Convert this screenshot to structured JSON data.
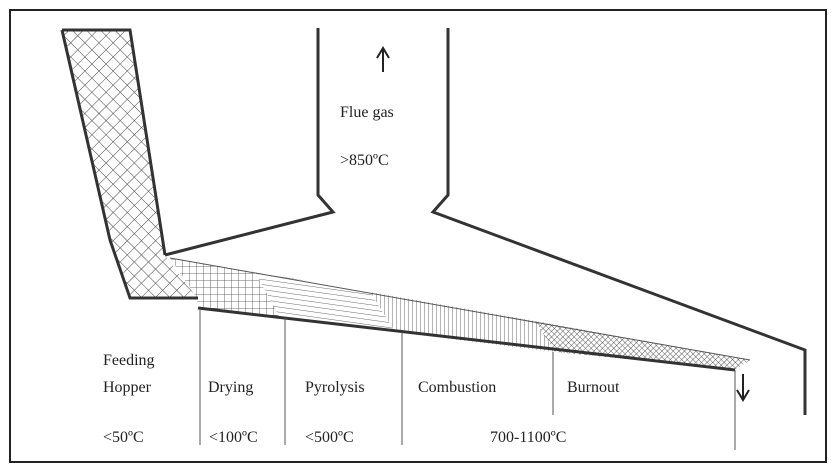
{
  "flue": {
    "label": "Flue gas",
    "temperature": ">850ºC"
  },
  "zones": [
    {
      "name_lines": [
        "Feeding",
        "Hopper"
      ]
    },
    {
      "name_lines": [
        "Drying"
      ]
    },
    {
      "name_lines": [
        "Pyrolysis"
      ]
    },
    {
      "name_lines": [
        "Combustion"
      ]
    },
    {
      "name_lines": [
        "Burnout"
      ]
    }
  ],
  "temperatures": [
    "<50ºC",
    "<100ºC",
    "<500ºC",
    "700-1100ºC"
  ]
}
